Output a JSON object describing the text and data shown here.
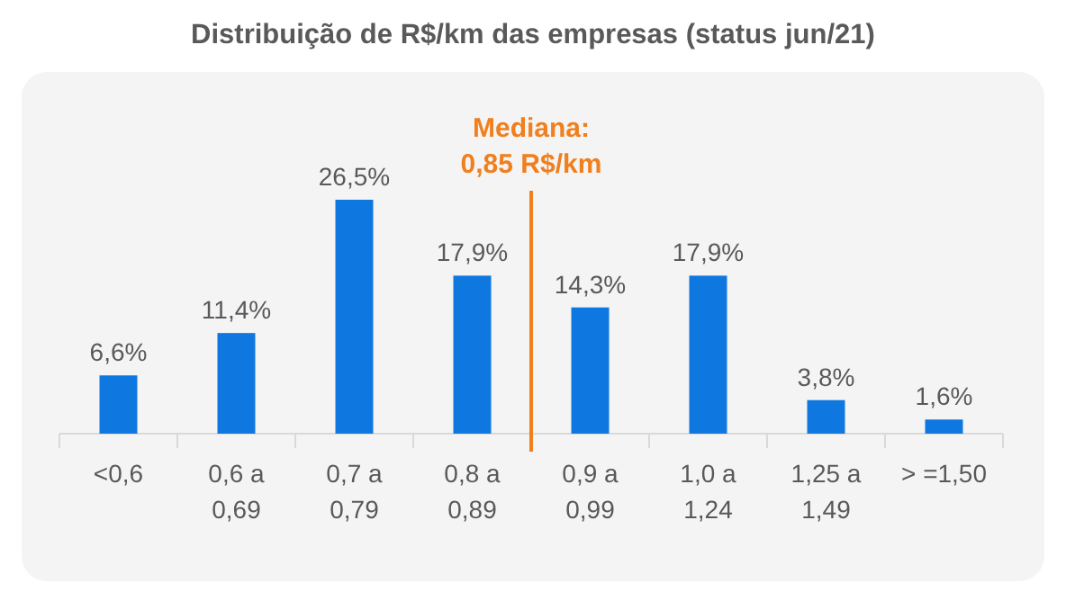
{
  "chart_data": {
    "type": "bar",
    "title": "Distribuição de R$/km das empresas (status jun/21)",
    "categories": [
      "<0,6",
      "0,6 a\n0,69",
      "0,7 a\n0,79",
      "0,8 a\n0,89",
      "0,9 a\n0,99",
      "1,0 a\n1,24",
      "1,25 a\n1,49",
      "> =1,50"
    ],
    "values": [
      6.6,
      11.4,
      26.5,
      17.9,
      14.3,
      17.9,
      3.8,
      1.6
    ],
    "value_labels": [
      "6,6%",
      "11,4%",
      "26,5%",
      "17,9%",
      "14,3%",
      "17,9%",
      "3,8%",
      "1,6%"
    ],
    "color": "#0f78e0",
    "ref_lines": [
      {
        "axis": "x",
        "value": "0,8 a\n0,89",
        "label": "Mediana:\n0,85 R$/km",
        "color": "#f07f1e"
      }
    ]
  }
}
